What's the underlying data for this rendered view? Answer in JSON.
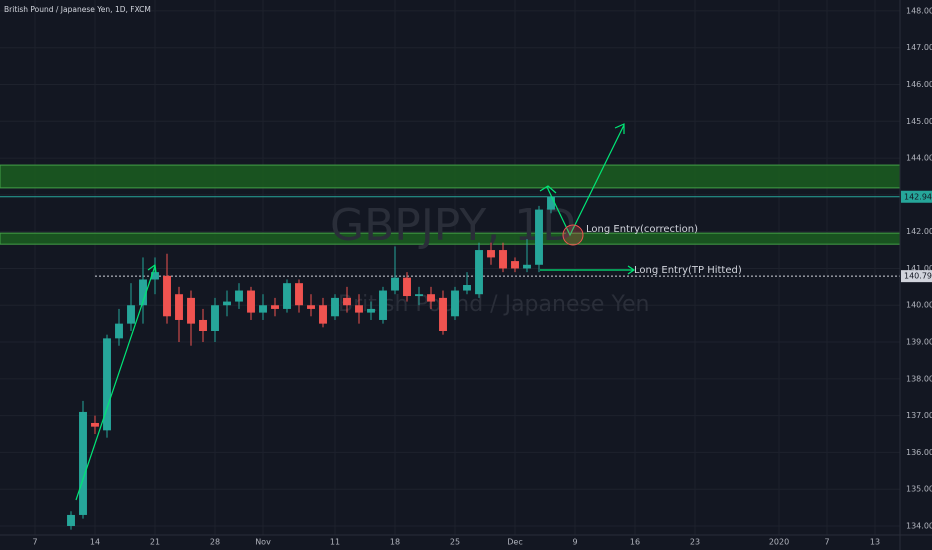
{
  "chart_data": {
    "type": "candlestick",
    "title": "British Pound / Japanese Yen, 1D, FXCM",
    "watermark": "GBPJPY, 1D",
    "watermark_subtitle": "British Pound / Japanese Yen",
    "x": [
      0,
      1,
      2,
      3,
      4,
      5,
      6,
      7,
      8,
      9,
      10,
      11,
      12,
      13,
      14,
      15,
      16,
      17,
      18,
      19,
      20,
      21,
      22,
      23,
      24,
      25,
      26,
      27,
      28,
      29,
      30,
      31,
      32,
      33,
      34,
      35,
      36,
      37,
      38,
      39,
      40
    ],
    "open": [
      134.0,
      134.3,
      136.8,
      136.6,
      139.1,
      139.5,
      140.0,
      140.7,
      140.8,
      140.3,
      140.2,
      139.6,
      139.3,
      140.0,
      140.1,
      140.4,
      139.8,
      140.0,
      139.9,
      140.6,
      140.0,
      140.0,
      139.7,
      140.2,
      140.0,
      139.8,
      139.6,
      140.4,
      140.75,
      140.25,
      140.3,
      140.2,
      139.7,
      140.4,
      140.3,
      141.5,
      141.5,
      141.2,
      141.0,
      141.1,
      142.6
    ],
    "high": [
      134.4,
      137.4,
      137.0,
      139.2,
      139.9,
      140.6,
      141.3,
      141.3,
      141.4,
      140.5,
      140.4,
      139.9,
      140.2,
      140.4,
      140.6,
      140.5,
      140.3,
      140.2,
      140.7,
      140.7,
      140.3,
      140.2,
      140.3,
      140.5,
      140.3,
      140.1,
      140.5,
      141.6,
      140.9,
      140.5,
      140.5,
      140.4,
      140.5,
      140.9,
      141.7,
      141.7,
      141.7,
      141.3,
      141.8,
      142.7,
      143.0
    ],
    "low": [
      133.9,
      134.2,
      136.5,
      136.4,
      138.9,
      139.3,
      139.5,
      140.3,
      139.5,
      139.0,
      138.9,
      139.0,
      139.0,
      139.7,
      139.9,
      139.6,
      139.6,
      139.7,
      139.8,
      139.8,
      139.7,
      139.4,
      139.6,
      139.8,
      139.5,
      139.6,
      139.5,
      140.3,
      140.1,
      140.0,
      139.9,
      139.2,
      139.6,
      140.3,
      140.2,
      141.1,
      140.9,
      140.9,
      140.9,
      140.9,
      142.5
    ],
    "close": [
      134.3,
      137.1,
      136.7,
      139.1,
      139.5,
      140.0,
      140.7,
      140.9,
      139.7,
      139.6,
      139.5,
      139.3,
      140.0,
      140.1,
      140.4,
      139.8,
      140.0,
      139.9,
      140.6,
      140.0,
      139.9,
      139.5,
      140.2,
      140.0,
      139.8,
      139.9,
      140.4,
      140.75,
      140.25,
      140.3,
      140.1,
      139.3,
      140.4,
      140.55,
      141.5,
      141.3,
      141.0,
      141.0,
      141.1,
      142.6,
      142.949
    ],
    "up_color": "#26a69a",
    "down_color": "#ef5350",
    "xlim": [
      -5.917,
      69.083
    ],
    "xticks": [
      {
        "value": -3,
        "label": "7"
      },
      {
        "value": 2,
        "label": "14"
      },
      {
        "value": 7,
        "label": "21"
      },
      {
        "value": 12,
        "label": "28"
      },
      {
        "value": 16,
        "label": "Nov"
      },
      {
        "value": 22,
        "label": "11"
      },
      {
        "value": 27,
        "label": "18"
      },
      {
        "value": 32,
        "label": "25"
      },
      {
        "value": 37,
        "label": "Dec"
      },
      {
        "value": 42,
        "label": "9"
      },
      {
        "value": 47,
        "label": "16"
      },
      {
        "value": 52,
        "label": "23"
      },
      {
        "value": 59,
        "label": "2020"
      },
      {
        "value": 63,
        "label": "7"
      },
      {
        "value": 67,
        "label": "13"
      }
    ],
    "ylim": [
      133.755,
      148.297
    ],
    "yticks": [
      {
        "value": 134,
        "label": "134.000"
      },
      {
        "value": 135,
        "label": "135.000"
      },
      {
        "value": 136,
        "label": "136.000"
      },
      {
        "value": 137,
        "label": "137.000"
      },
      {
        "value": 138,
        "label": "138.000"
      },
      {
        "value": 139,
        "label": "139.000"
      },
      {
        "value": 140,
        "label": "140.000"
      },
      {
        "value": 141,
        "label": "141.000"
      },
      {
        "value": 142,
        "label": "142.000"
      },
      {
        "value": 143,
        "label": "143.000"
      },
      {
        "value": 144,
        "label": "144.000"
      },
      {
        "value": 145,
        "label": "145.000"
      },
      {
        "value": 146,
        "label": "146.000"
      },
      {
        "value": 147,
        "label": "147.000"
      },
      {
        "value": 148,
        "label": "148.000"
      }
    ],
    "grid": true,
    "zones": [
      [
        143.19,
        143.81
      ],
      [
        141.66,
        141.96
      ]
    ],
    "zone_color": "#1b5e20",
    "price_lines": [
      {
        "value": 142.949,
        "label": "142.949",
        "color": "#26a69a"
      },
      {
        "value": 140.791,
        "label": "140.791",
        "color": "#d1d4dc"
      }
    ],
    "annotations": [
      "Long Entry(correction)",
      "Long Entry(TP Hitted)"
    ]
  }
}
